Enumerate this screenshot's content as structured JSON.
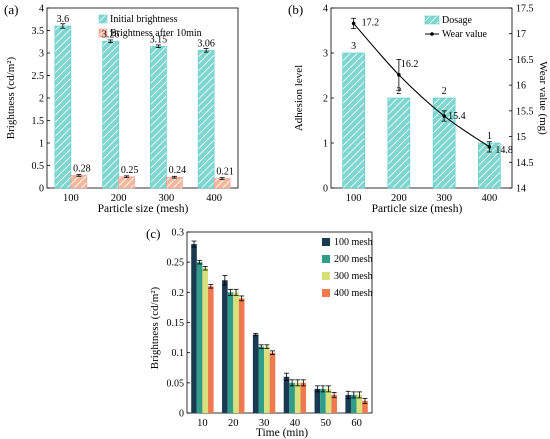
{
  "colors": {
    "initial": "#7fd6d0",
    "after": "#f2b89c",
    "dosage": "#7fd6d0",
    "wear": "#000000",
    "s100": "#1a3a52",
    "s200": "#2e9e8a",
    "s300": "#d8e07a",
    "s400": "#f07a4e"
  },
  "chart_data": [
    {
      "id": "a",
      "panel_label": "(a)",
      "type": "bar",
      "title": "",
      "xlabel": "Particle size (mesh)",
      "ylabel": "Brightness (cd/m²)",
      "categories": [
        "100",
        "200",
        "300",
        "400"
      ],
      "ylim": [
        0,
        4
      ],
      "yticks": [
        "0",
        "0.5",
        "1",
        "1.5",
        "2",
        "2.5",
        "3",
        "3.5",
        "4"
      ],
      "legend": "top-right",
      "series": [
        {
          "name": "Initial brightness",
          "values": [
            3.6,
            3.26,
            3.15,
            3.06
          ],
          "labels": [
            "3.6",
            "3.26",
            "3.15",
            "3.06"
          ],
          "errors": [
            0.05,
            0.03,
            0.03,
            0.04
          ]
        },
        {
          "name": "Brightness after 10min",
          "values": [
            0.28,
            0.25,
            0.24,
            0.21
          ],
          "labels": [
            "0.28",
            "0.25",
            "0.24",
            "0.21"
          ],
          "errors": [
            0.02,
            0.02,
            0.02,
            0.02
          ]
        }
      ]
    },
    {
      "id": "b",
      "panel_label": "(b)",
      "type": "bar",
      "title": "",
      "xlabel": "Particle size (mesh)",
      "ylabel": "Adhesion level",
      "y2label": "Wear value (mg)",
      "categories": [
        "100",
        "200",
        "300",
        "400"
      ],
      "ylim": [
        0,
        4
      ],
      "yticks": [
        "0",
        "1",
        "2",
        "3",
        "4"
      ],
      "y2lim": [
        14,
        17.5
      ],
      "y2ticks": [
        "14",
        "14.5",
        "15",
        "15.5",
        "16",
        "16.5",
        "17",
        "17.5"
      ],
      "legend": "top-right",
      "series": [
        {
          "name": "Dosage",
          "values": [
            3,
            2,
            2,
            1
          ],
          "labels": [
            "3",
            "2",
            "2",
            "1"
          ]
        },
        {
          "name": "Wear value",
          "type": "line",
          "axis": "y2",
          "values": [
            17.2,
            16.2,
            15.4,
            14.8
          ],
          "labels": [
            "17.2",
            "16.2",
            "15.4",
            "14.8"
          ],
          "errors": [
            0.1,
            0.3,
            0.1,
            0.1
          ]
        }
      ]
    },
    {
      "id": "c",
      "panel_label": "(c)",
      "type": "bar",
      "title": "",
      "xlabel": "Time (min)",
      "ylabel": "Brightness (cd/m²)",
      "categories": [
        "10",
        "20",
        "30",
        "40",
        "50",
        "60"
      ],
      "ylim": [
        0,
        0.3
      ],
      "yticks": [
        "0",
        "0.05",
        "0.1",
        "0.15",
        "0.2",
        "0.25",
        "0.3"
      ],
      "legend": "top-right",
      "series": [
        {
          "name": "100 mesh",
          "values": [
            0.28,
            0.22,
            0.13,
            0.06,
            0.04,
            0.03
          ],
          "errors": [
            0.005,
            0.008,
            0.002,
            0.006,
            0.005,
            0.006
          ]
        },
        {
          "name": "200 mesh",
          "values": [
            0.25,
            0.2,
            0.11,
            0.05,
            0.04,
            0.03
          ],
          "errors": [
            0.003,
            0.005,
            0.003,
            0.005,
            0.005,
            0.005
          ]
        },
        {
          "name": "300 mesh",
          "values": [
            0.24,
            0.2,
            0.11,
            0.05,
            0.04,
            0.03
          ],
          "errors": [
            0.003,
            0.005,
            0.003,
            0.005,
            0.005,
            0.005
          ]
        },
        {
          "name": "400 mesh",
          "values": [
            0.21,
            0.19,
            0.1,
            0.05,
            0.03,
            0.02
          ],
          "errors": [
            0.003,
            0.004,
            0.003,
            0.005,
            0.004,
            0.004
          ]
        }
      ]
    }
  ]
}
